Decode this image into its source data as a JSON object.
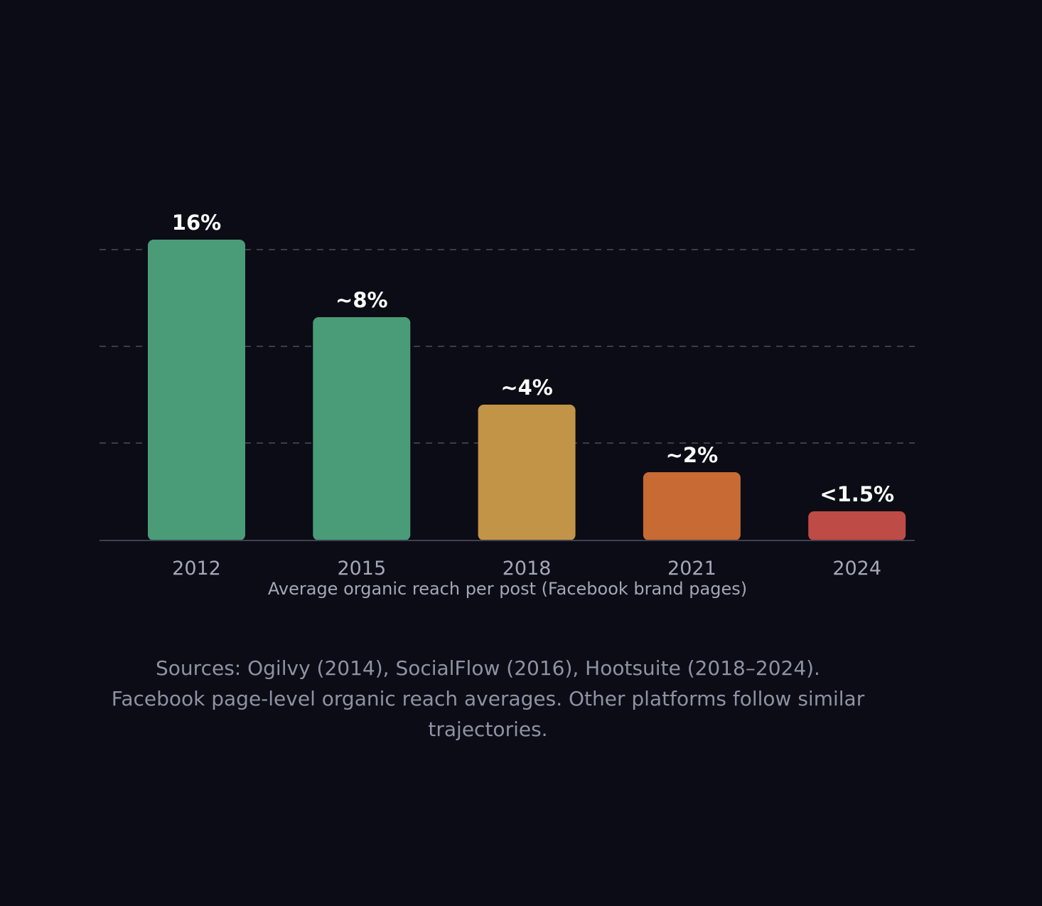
{
  "chart_data": {
    "type": "bar",
    "categories": [
      "2012",
      "2015",
      "2018",
      "2021",
      "2024"
    ],
    "values": [
      16,
      8,
      4,
      2,
      1.5
    ],
    "value_labels": [
      "16%",
      "~8%",
      "~4%",
      "~2%",
      "<1.5%"
    ],
    "bar_colors": [
      "#4a9c78",
      "#4a9c78",
      "#c29447",
      "#c76a33",
      "#be4b46"
    ],
    "xlabel": "Average organic reach per post (Facebook brand pages)",
    "ylabel": "",
    "grid": true,
    "footnote": "Sources: Ogilvy (2014), SocialFlow (2016), Hootsuite (2018–2024). Facebook page-level organic reach averages. Other platforms follow similar trajectories."
  },
  "colors": {
    "background": "#0b0c15",
    "gridline": "#3a3c4a",
    "axis_line": "#3f414f",
    "value_label": "#ffffff",
    "tick_label": "#a4a7b6",
    "footnote": "#8f92a3"
  }
}
